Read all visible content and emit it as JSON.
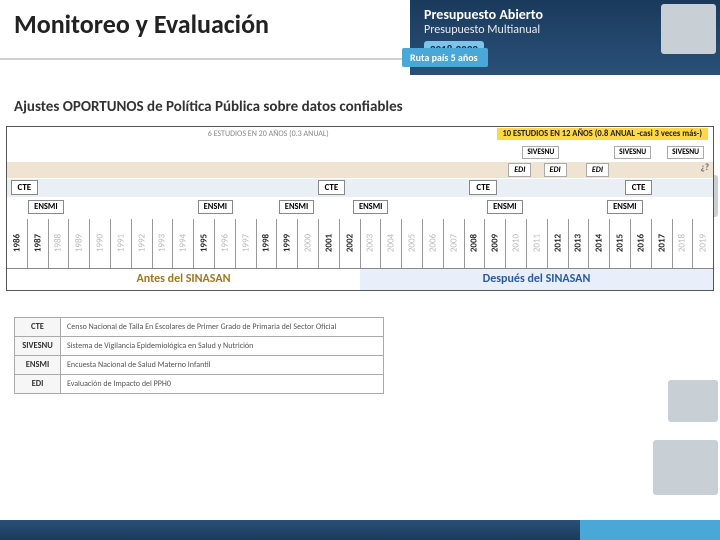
{
  "title": "Monitoreo y Evaluación",
  "banner": {
    "line1": "Presupuesto Abierto",
    "line2": "Presupuesto Multianual",
    "years": "2018-2022",
    "ribbon": "Ruta país 5 años"
  },
  "subtitle": "Ajustes OPORTUNOS de Política Pública sobre datos confiables",
  "bands": {
    "before_text": "6 ESTUDIOS EN 20 AÑOS (0.3 ANUAL)",
    "after_text": "10 ESTUDIOS EN 12 AÑOS (0.8 ANUAL -casi 3 veces más-)",
    "after_bg": "#ffd84a"
  },
  "sivesnu": [
    {
      "label": "SIVESNU",
      "left_pct": 73
    },
    {
      "label": "SIVESNU",
      "left_pct": 86
    },
    {
      "label": "SIVESNU",
      "left_pct": 93.5
    }
  ],
  "edi": [
    {
      "label": "EDI",
      "left_pct": 71
    },
    {
      "label": "EDI",
      "left_pct": 76
    },
    {
      "label": "EDI",
      "left_pct": 82
    }
  ],
  "edi_end": "¿?",
  "cte": [
    {
      "label": "CTE",
      "left_pct": 0.5
    },
    {
      "label": "CTE",
      "left_pct": 44
    },
    {
      "label": "CTE",
      "left_pct": 65.5
    },
    {
      "label": "CTE",
      "left_pct": 87.5
    }
  ],
  "ensmi": [
    {
      "label": "ENSMI",
      "left_pct": 3
    },
    {
      "label": "ENSMI",
      "left_pct": 27
    },
    {
      "label": "ENSMI",
      "left_pct": 38.5
    },
    {
      "label": "ENSMI",
      "left_pct": 49
    },
    {
      "label": "ENSMI",
      "left_pct": 68
    },
    {
      "label": "ENSMI",
      "left_pct": 85
    }
  ],
  "years": [
    {
      "y": "1986",
      "bold": true
    },
    {
      "y": "1987",
      "bold": true
    },
    {
      "y": "1988",
      "bold": false
    },
    {
      "y": "1989",
      "bold": false
    },
    {
      "y": "1990",
      "bold": false
    },
    {
      "y": "1991",
      "bold": false
    },
    {
      "y": "1992",
      "bold": false
    },
    {
      "y": "1993",
      "bold": false
    },
    {
      "y": "1994",
      "bold": false
    },
    {
      "y": "1995",
      "bold": true
    },
    {
      "y": "1996",
      "bold": false
    },
    {
      "y": "1997",
      "bold": false
    },
    {
      "y": "1998",
      "bold": true
    },
    {
      "y": "1999",
      "bold": true
    },
    {
      "y": "2000",
      "bold": false
    },
    {
      "y": "2001",
      "bold": true
    },
    {
      "y": "2002",
      "bold": true
    },
    {
      "y": "2003",
      "bold": false
    },
    {
      "y": "2004",
      "bold": false
    },
    {
      "y": "2005",
      "bold": false
    },
    {
      "y": "2006",
      "bold": false
    },
    {
      "y": "2007",
      "bold": false
    },
    {
      "y": "2008",
      "bold": true
    },
    {
      "y": "2009",
      "bold": true
    },
    {
      "y": "2010",
      "bold": false
    },
    {
      "y": "2011",
      "bold": false
    },
    {
      "y": "2012",
      "bold": true
    },
    {
      "y": "2013",
      "bold": true
    },
    {
      "y": "2014",
      "bold": true
    },
    {
      "y": "2015",
      "bold": true
    },
    {
      "y": "2016",
      "bold": true
    },
    {
      "y": "2017",
      "bold": true
    },
    {
      "y": "2018",
      "bold": false
    },
    {
      "y": "2019",
      "bold": false
    }
  ],
  "footer": {
    "before": "Antes del SINASAN",
    "after": "Después del SINASAN"
  },
  "legend": [
    {
      "k": "CTE",
      "v": "Censo Nacional de Talla En Escolares de Primer Grado de Primaria del Sector Oficial"
    },
    {
      "k": "SIVESNU",
      "v": "Sistema de Vigilancia Epidemiológica en Salud y Nutrición"
    },
    {
      "k": "ENSMI",
      "v": "Encuesta Nacional de Salud Materno Infantil"
    },
    {
      "k": "EDI",
      "v": "Evaluación de Impacto del PPH0"
    }
  ],
  "colors": {
    "banner_bg": "#1a3a5c",
    "accent": "#4aa8d8",
    "highlight": "#ffd84a",
    "edi_band": "#efe3d2",
    "cte_band": "#eaeff5"
  }
}
